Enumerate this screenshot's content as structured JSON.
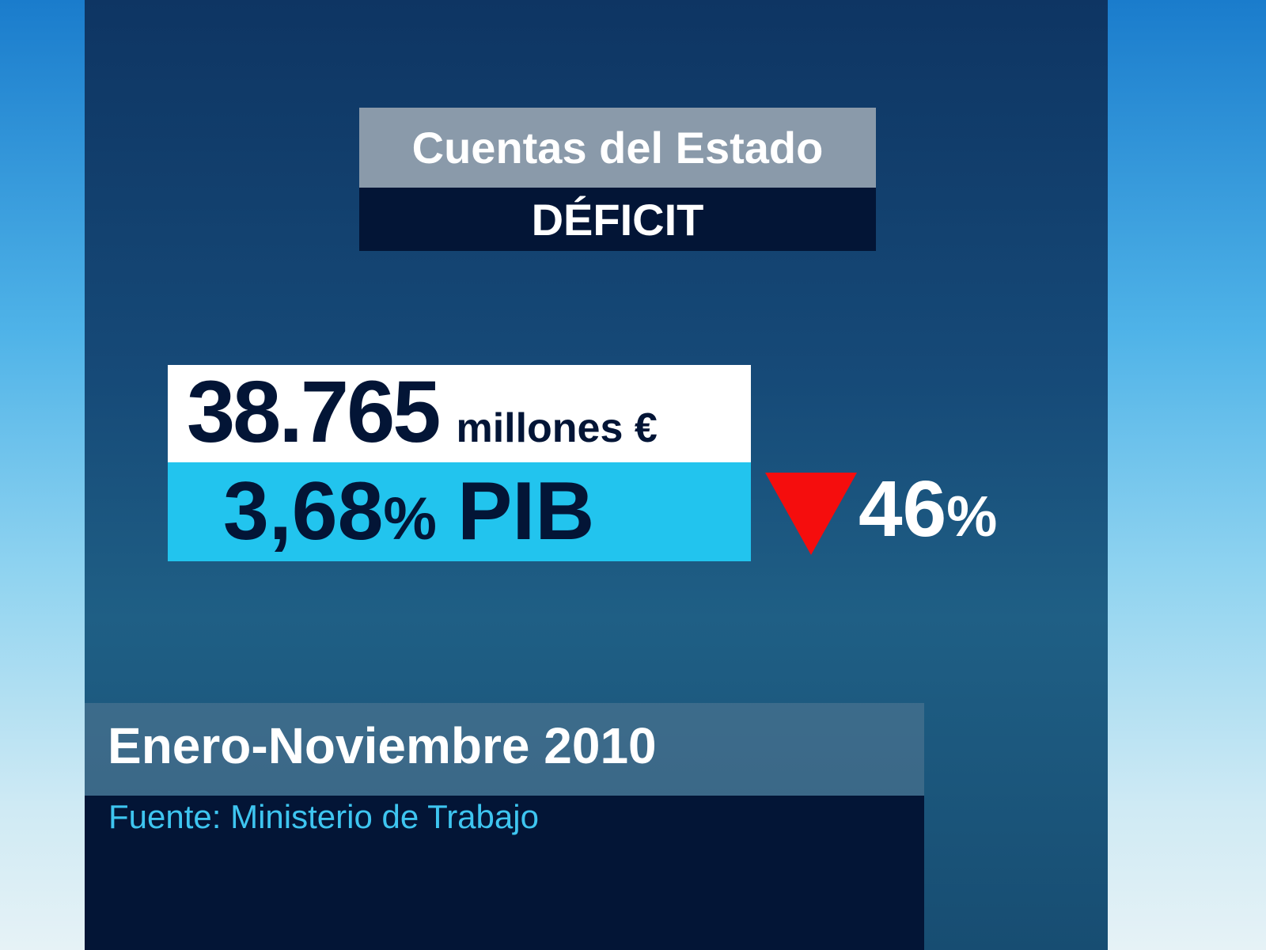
{
  "header": {
    "title": "Cuentas del Estado",
    "subtitle": "DÉFICIT"
  },
  "figures": {
    "amount": "38.765",
    "amount_unit": "millones €",
    "gdp_value": "3,68",
    "gdp_unit": "%",
    "gdp_label": "PIB",
    "change_value": "46",
    "change_unit": "%"
  },
  "footer": {
    "period": "Enero-Noviembre 2010",
    "source": "Fuente: Ministerio de Trabajo"
  }
}
